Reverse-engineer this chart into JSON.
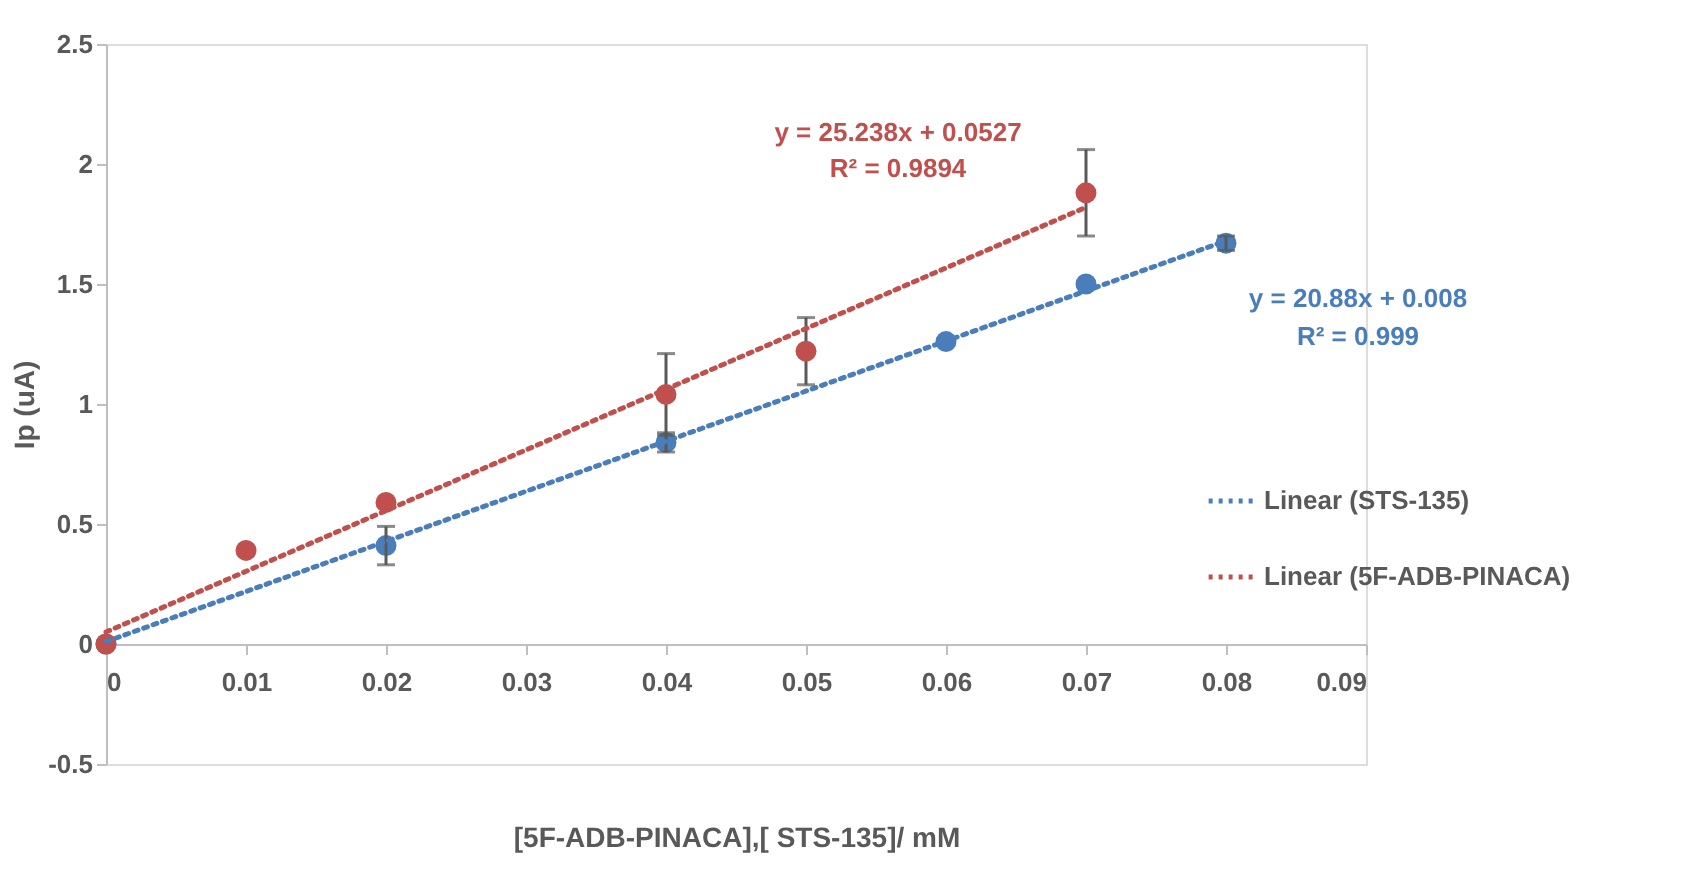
{
  "chart_data": {
    "type": "scatter",
    "xlabel": "[5F-ADB-PINACA],[ STS-135]/ mM",
    "ylabel": "Ip (uA)",
    "xlim": [
      0,
      0.09
    ],
    "xticks": [
      0,
      0.01,
      0.02,
      0.03,
      0.04,
      0.05,
      0.06,
      0.07,
      0.08,
      0.09
    ],
    "ylim": [
      -0.5,
      2.5
    ],
    "yticks": [
      -0.5,
      0,
      0.5,
      1,
      1.5,
      2,
      2.5
    ],
    "grid": false,
    "legend": "right",
    "marker": "circle",
    "series": [
      {
        "color": "#4a7ebb",
        "x": [
          0,
          0.02,
          0.04,
          0.06,
          0.07,
          0.08
        ],
        "values": [
          0,
          0.41,
          0.84,
          1.26,
          1.5,
          1.67
        ],
        "errors": [
          null,
          0.08,
          0.04,
          null,
          null,
          0.03
        ]
      },
      {
        "color": "#c0504d",
        "x": [
          0,
          0.01,
          0.02,
          0.04,
          0.05,
          0.07
        ],
        "values": [
          0,
          0.39,
          0.59,
          1.04,
          1.22,
          1.88
        ],
        "errors": [
          null,
          null,
          null,
          0.17,
          0.14,
          0.18
        ]
      },
      {
        "type": "line",
        "name": "Linear (STS-135)",
        "color": "#4a7ebb",
        "line_style": "dotted",
        "marker": "none",
        "x": [
          0,
          0.08
        ],
        "values": [
          0.01,
          1.68
        ]
      },
      {
        "type": "line",
        "name": "Linear (5F-ADB-PINACA)",
        "color": "#c0504d",
        "line_style": "dotted",
        "marker": "none",
        "x": [
          0,
          0.07
        ],
        "values": [
          0.05,
          1.82
        ]
      }
    ],
    "annotations": [
      "y = 25.238x + 0.0527",
      "R² = 0.9894",
      "y = 20.88x + 0.008",
      "R² = 0.999"
    ]
  }
}
